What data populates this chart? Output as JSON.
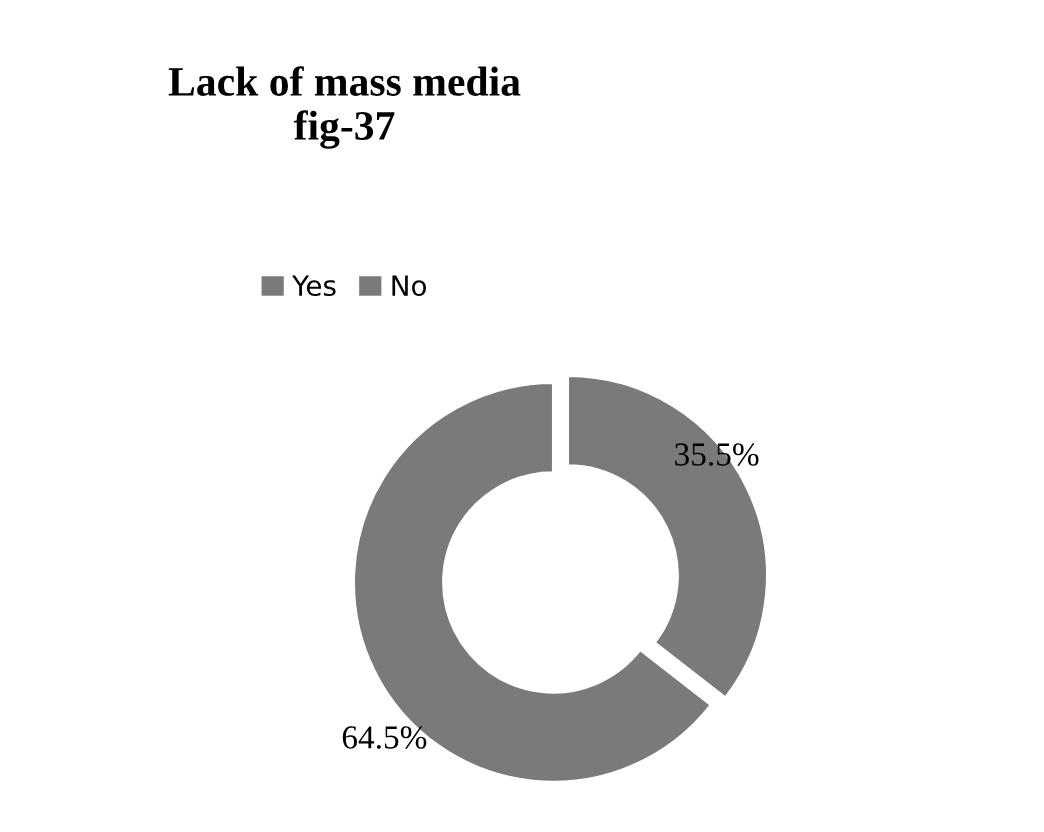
{
  "chart_data": {
    "type": "donut",
    "title": "Lack of mass media\nfig-37",
    "categories": [
      "Yes",
      "No"
    ],
    "values": [
      35.5,
      64.5
    ],
    "colors": [
      "#7a7a7a",
      "#7a7a7a"
    ],
    "value_labels": [
      "35.5%",
      "64.5%"
    ],
    "legend": "top"
  }
}
